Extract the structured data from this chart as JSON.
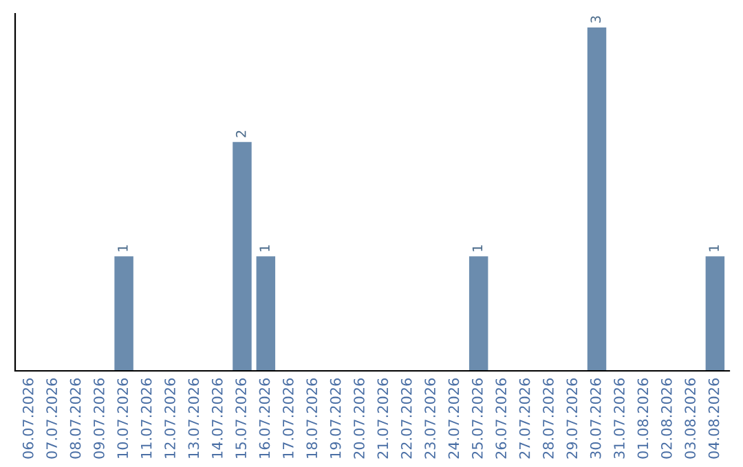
{
  "chart_data": {
    "type": "bar",
    "categories": [
      "06.07.2026",
      "07.07.2026",
      "08.07.2026",
      "09.07.2026",
      "10.07.2026",
      "11.07.2026",
      "12.07.2026",
      "13.07.2026",
      "14.07.2026",
      "15.07.2026",
      "16.07.2026",
      "17.07.2026",
      "18.07.2026",
      "19.07.2026",
      "20.07.2026",
      "21.07.2026",
      "22.07.2026",
      "23.07.2026",
      "24.07.2026",
      "25.07.2026",
      "26.07.2026",
      "27.07.2026",
      "28.07.2026",
      "29.07.2026",
      "30.07.2026",
      "31.07.2026",
      "01.08.2026",
      "02.08.2026",
      "03.08.2026",
      "04.08.2026"
    ],
    "values": [
      0,
      0,
      0,
      0,
      1,
      0,
      0,
      0,
      0,
      2,
      1,
      0,
      0,
      0,
      0,
      0,
      0,
      0,
      0,
      1,
      0,
      0,
      0,
      0,
      3,
      0,
      0,
      0,
      0,
      1
    ],
    "value_labels": [
      null,
      null,
      null,
      null,
      "1",
      null,
      null,
      null,
      null,
      "2",
      "1",
      null,
      null,
      null,
      null,
      null,
      null,
      null,
      null,
      "1",
      null,
      null,
      null,
      null,
      "3",
      null,
      null,
      null,
      null,
      "1"
    ],
    "color": "#6b8cae",
    "tick_labels": "x",
    "grid": false,
    "legend": false
  }
}
